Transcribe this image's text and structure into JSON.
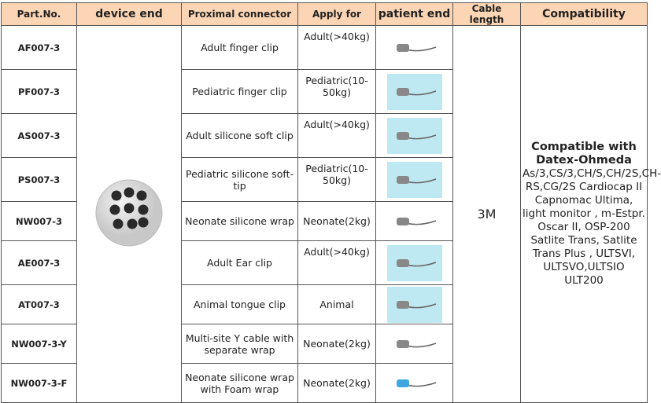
{
  "headers": [
    "Part.No.",
    "device end",
    "Proximal connector",
    "Apply for",
    "patient end",
    "Cable length",
    "Compatibility"
  ],
  "rows": [
    {
      "part": "AF007-3",
      "connector": "Adult finger clip",
      "apply": "Adult(>40kg)",
      "icon": "finger-clip-sensor-icon"
    },
    {
      "part": "PF007-3",
      "connector": "Pediatric finger clip",
      "apply": "Pediatric(10-50kg)",
      "icon": "pediatric-finger-sensor-icon"
    },
    {
      "part": "AS007-3",
      "connector": "Adult silicone soft clip",
      "apply": "Adult(>40kg)",
      "icon": "silicone-clip-sensor-icon"
    },
    {
      "part": "PS007-3",
      "connector": "Pediatric silicone soft-tip",
      "apply": "Pediatric(10-50kg)",
      "icon": "silicone-tip-sensor-icon"
    },
    {
      "part": "NW007-3",
      "connector": "Neonate silicone wrap",
      "apply": "Neonate(2kg)",
      "icon": "neonate-wrap-sensor-icon"
    },
    {
      "part": "AE007-3",
      "connector": "Adult Ear clip",
      "apply": "Adult(>40kg)",
      "icon": "ear-clip-sensor-icon"
    },
    {
      "part": "AT007-3",
      "connector": "Animal tongue clip",
      "apply": "Animal",
      "icon": "tongue-clip-sensor-icon"
    },
    {
      "part": "NW007-3-Y",
      "connector": "Multi-site Y cable with separate wrap",
      "apply": "Neonate(2kg)",
      "icon": "y-cable-sensor-icon"
    },
    {
      "part": "NW007-3-F",
      "connector": "Neonate silicone wrap with Foam wrap",
      "apply": "Neonate(2kg)",
      "icon": "foam-wrap-sensor-icon"
    }
  ],
  "cable_length": "3M",
  "compatibility": {
    "title": "Compatible with Datex-Ohmeda",
    "models": "As/3,CS/3,CH/S,CH/2S,CH-RS,CG/2S Cardiocap II Capnomac Ultima, light monitor , m-Estpr. Oscar II, OSP-200 Satlite Trans, Satlite Trans Plus , ULTSVI, ULTSVO,ULTSIO ULT200"
  },
  "colors": {
    "header_bg": "#fcd5b4",
    "border": "#555555"
  }
}
